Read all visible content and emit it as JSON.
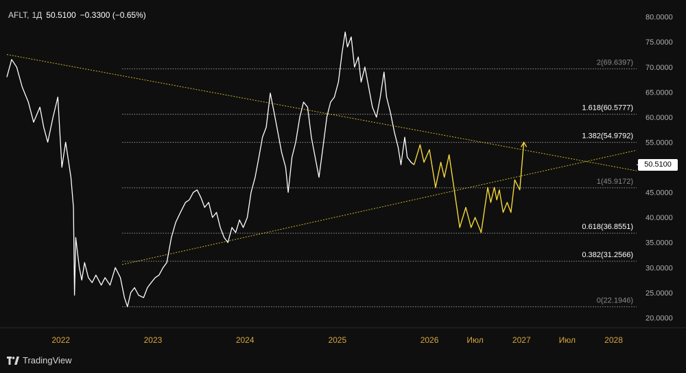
{
  "legend": {
    "symbol": "AFLT,",
    "timeframe": "1Д",
    "last_value": "50.5100",
    "change": "−0.3300 (−0.65%)"
  },
  "price_badge": "50.5100",
  "brand": "TradingView",
  "colors": {
    "background": "#0f0f0f",
    "price_line": "#ffffff",
    "projection": "#f5d73a",
    "trendline": "#c9b52a",
    "fib_line": "#9a9a9a",
    "axis_text": "#b0b0b0",
    "year_text": "#d6a640"
  },
  "chart_data": {
    "type": "line",
    "title": "",
    "ylim": [
      18,
      82
    ],
    "y_ticks": [
      "20.0000",
      "25.0000",
      "30.0000",
      "35.0000",
      "40.0000",
      "45.0000",
      "50.0000",
      "55.0000",
      "60.0000",
      "65.0000",
      "70.0000",
      "75.0000",
      "80.0000"
    ],
    "x_ticks": [
      {
        "label": "2022",
        "date": "2022-01-01"
      },
      {
        "label": "2023",
        "date": "2023-01-01"
      },
      {
        "label": "2024",
        "date": "2024-01-01"
      },
      {
        "label": "2025",
        "date": "2025-01-01"
      },
      {
        "label": "2026",
        "date": "2026-01-01"
      },
      {
        "label": "Июл",
        "date": "2026-07-01"
      },
      {
        "label": "2027",
        "date": "2027-01-01"
      },
      {
        "label": "Июл",
        "date": "2027-07-01"
      },
      {
        "label": "2028",
        "date": "2028-01-01"
      }
    ],
    "series": [
      {
        "style": "price",
        "points": [
          [
            "2021-06-01",
            68
          ],
          [
            "2021-06-20",
            71.5
          ],
          [
            "2021-07-10",
            70
          ],
          [
            "2021-08-01",
            66
          ],
          [
            "2021-08-25",
            63
          ],
          [
            "2021-09-15",
            59
          ],
          [
            "2021-10-10",
            62
          ],
          [
            "2021-10-25",
            58
          ],
          [
            "2021-11-10",
            55
          ],
          [
            "2021-12-01",
            60
          ],
          [
            "2021-12-20",
            64
          ],
          [
            "2022-01-05",
            50
          ],
          [
            "2022-01-20",
            55
          ],
          [
            "2022-02-10",
            48
          ],
          [
            "2022-02-20",
            42
          ],
          [
            "2022-02-24",
            24.5
          ],
          [
            "2022-03-01",
            36
          ],
          [
            "2022-03-15",
            30
          ],
          [
            "2022-03-25",
            27.5
          ],
          [
            "2022-04-05",
            31
          ],
          [
            "2022-04-20",
            28
          ],
          [
            "2022-05-05",
            27
          ],
          [
            "2022-05-20",
            28.5
          ],
          [
            "2022-06-10",
            26.5
          ],
          [
            "2022-06-25",
            28
          ],
          [
            "2022-07-15",
            26.5
          ],
          [
            "2022-08-05",
            30
          ],
          [
            "2022-08-25",
            28
          ],
          [
            "2022-09-10",
            24
          ],
          [
            "2022-09-22",
            22.2
          ],
          [
            "2022-10-05",
            25
          ],
          [
            "2022-10-20",
            26
          ],
          [
            "2022-11-05",
            24.5
          ],
          [
            "2022-11-25",
            24
          ],
          [
            "2022-12-10",
            26
          ],
          [
            "2022-12-25",
            27
          ],
          [
            "2023-01-10",
            28
          ],
          [
            "2023-01-25",
            28.5
          ],
          [
            "2023-02-10",
            30
          ],
          [
            "2023-02-25",
            31
          ],
          [
            "2023-03-15",
            36
          ],
          [
            "2023-04-01",
            39
          ],
          [
            "2023-04-20",
            41
          ],
          [
            "2023-05-10",
            43
          ],
          [
            "2023-05-25",
            43.5
          ],
          [
            "2023-06-10",
            45
          ],
          [
            "2023-06-25",
            45.5
          ],
          [
            "2023-07-10",
            44
          ],
          [
            "2023-07-25",
            42
          ],
          [
            "2023-08-10",
            43
          ],
          [
            "2023-08-25",
            40
          ],
          [
            "2023-09-10",
            41
          ],
          [
            "2023-09-25",
            38
          ],
          [
            "2023-10-10",
            36
          ],
          [
            "2023-10-25",
            35
          ],
          [
            "2023-11-10",
            38
          ],
          [
            "2023-11-25",
            37
          ],
          [
            "2023-12-10",
            39.5
          ],
          [
            "2023-12-25",
            38
          ],
          [
            "2024-01-10",
            40
          ],
          [
            "2024-01-25",
            45
          ],
          [
            "2024-02-10",
            48
          ],
          [
            "2024-02-25",
            52
          ],
          [
            "2024-03-10",
            56
          ],
          [
            "2024-03-25",
            58
          ],
          [
            "2024-04-10",
            64.8
          ],
          [
            "2024-04-25",
            61
          ],
          [
            "2024-05-10",
            57
          ],
          [
            "2024-05-25",
            53
          ],
          [
            "2024-06-10",
            50
          ],
          [
            "2024-06-20",
            45
          ],
          [
            "2024-07-05",
            52
          ],
          [
            "2024-07-20",
            55
          ],
          [
            "2024-08-05",
            60
          ],
          [
            "2024-08-20",
            63
          ],
          [
            "2024-09-05",
            62
          ],
          [
            "2024-09-20",
            56
          ],
          [
            "2024-10-05",
            52
          ],
          [
            "2024-10-20",
            48
          ],
          [
            "2024-11-05",
            54
          ],
          [
            "2024-11-20",
            60
          ],
          [
            "2024-12-05",
            63
          ],
          [
            "2024-12-20",
            64
          ],
          [
            "2025-01-05",
            67
          ],
          [
            "2025-01-20",
            73
          ],
          [
            "2025-02-01",
            77
          ],
          [
            "2025-02-10",
            74
          ],
          [
            "2025-02-25",
            76
          ],
          [
            "2025-03-10",
            70
          ],
          [
            "2025-03-25",
            72
          ],
          [
            "2025-04-05",
            67
          ],
          [
            "2025-04-20",
            70
          ],
          [
            "2025-05-05",
            66
          ],
          [
            "2025-05-20",
            62
          ],
          [
            "2025-06-05",
            60
          ],
          [
            "2025-06-20",
            64
          ],
          [
            "2025-07-05",
            69
          ],
          [
            "2025-07-15",
            64
          ],
          [
            "2025-07-30",
            61
          ],
          [
            "2025-08-15",
            57
          ],
          [
            "2025-08-30",
            54
          ],
          [
            "2025-09-10",
            50.5
          ],
          [
            "2025-09-25",
            56
          ],
          [
            "2025-10-05",
            52
          ],
          [
            "2025-10-20",
            51
          ],
          [
            "2025-11-01",
            50.51
          ]
        ]
      },
      {
        "style": "projection",
        "points": [
          [
            "2025-11-01",
            50.51
          ],
          [
            "2025-11-25",
            54.5
          ],
          [
            "2025-12-10",
            51
          ],
          [
            "2026-01-01",
            53.5
          ],
          [
            "2026-01-25",
            46
          ],
          [
            "2026-02-15",
            51
          ],
          [
            "2026-03-01",
            48
          ],
          [
            "2026-03-20",
            52.5
          ],
          [
            "2026-05-01",
            38
          ],
          [
            "2026-05-25",
            42
          ],
          [
            "2026-06-15",
            38
          ],
          [
            "2026-07-01",
            40
          ],
          [
            "2026-07-25",
            37
          ],
          [
            "2026-08-20",
            46
          ],
          [
            "2026-09-01",
            43
          ],
          [
            "2026-09-15",
            46
          ],
          [
            "2026-09-25",
            43.5
          ],
          [
            "2026-10-05",
            45.5
          ],
          [
            "2026-10-20",
            41
          ],
          [
            "2026-11-05",
            43
          ],
          [
            "2026-11-20",
            41
          ],
          [
            "2026-12-05",
            47.5
          ],
          [
            "2026-12-25",
            45.5
          ],
          [
            "2027-01-10",
            55
          ]
        ]
      }
    ],
    "trendlines": [
      {
        "from": [
          "2021-06-01",
          72.5
        ],
        "to": [
          "2028-04-01",
          49.3
        ]
      },
      {
        "from": [
          "2022-09-01",
          30.6
        ],
        "to": [
          "2028-04-01",
          53.4
        ]
      }
    ],
    "fib_levels": [
      {
        "label": "0(22.1946)",
        "value": 22.1946,
        "emphasis": false
      },
      {
        "label": "0.382(31.2566)",
        "value": 31.2566,
        "emphasis": true
      },
      {
        "label": "0.618(36.8551)",
        "value": 36.8551,
        "emphasis": true
      },
      {
        "label": "1(45.9172)",
        "value": 45.9172,
        "emphasis": false
      },
      {
        "label": "1.382(54.9792)",
        "value": 54.9792,
        "emphasis": true
      },
      {
        "label": "1.618(60.5777)",
        "value": 60.5777,
        "emphasis": true
      },
      {
        "label": "2(69.6397)",
        "value": 69.6397,
        "emphasis": false
      }
    ],
    "fib_start_date": "2022-09-01",
    "last_price": 50.51
  }
}
